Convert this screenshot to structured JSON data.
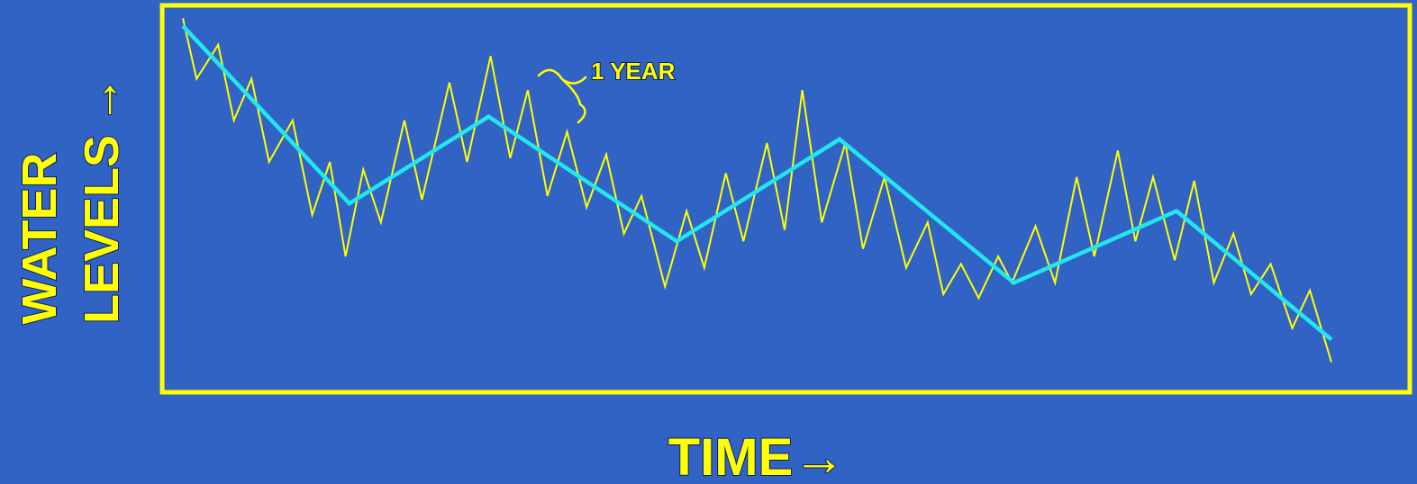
{
  "chart_data": {
    "type": "line",
    "xlabel": "TIME",
    "ylabel": [
      "WATER",
      "LEVELS"
    ],
    "arrow_glyph": "→",
    "annotation": "1 YEAR",
    "grid": false,
    "legend": "none",
    "xlim": [
      0,
      62
    ],
    "ylim": [
      0,
      100
    ],
    "colors": {
      "background": "#3163c5",
      "frame": "#ffff00",
      "seasonal": "#ffff00",
      "trend": "#22e6f0",
      "text": "#ffff00",
      "text_shadow": "#0b1f63"
    },
    "series": [
      {
        "values": [
          [
            0,
            98
          ],
          [
            0.7,
            82
          ],
          [
            1.8,
            91
          ],
          [
            2.6,
            71
          ],
          [
            3.5,
            82
          ],
          [
            4.4,
            60
          ],
          [
            5.6,
            71
          ],
          [
            6.6,
            46
          ],
          [
            7.5,
            60
          ],
          [
            8.3,
            35
          ],
          [
            9.2,
            58
          ],
          [
            10.1,
            44
          ],
          [
            11.3,
            71
          ],
          [
            12.2,
            50
          ],
          [
            13.6,
            81
          ],
          [
            14.5,
            60
          ],
          [
            15.7,
            88
          ],
          [
            16.7,
            61
          ],
          [
            17.6,
            79
          ],
          [
            18.6,
            51
          ],
          [
            19.6,
            68
          ],
          [
            20.6,
            48
          ],
          [
            21.6,
            62
          ],
          [
            22.5,
            41
          ],
          [
            23.4,
            51
          ],
          [
            24.6,
            27
          ],
          [
            25.7,
            47
          ],
          [
            26.6,
            32
          ],
          [
            27.7,
            57
          ],
          [
            28.6,
            39
          ],
          [
            29.8,
            65
          ],
          [
            30.7,
            42
          ],
          [
            31.6,
            79
          ],
          [
            32.6,
            44
          ],
          [
            33.8,
            65
          ],
          [
            34.7,
            37
          ],
          [
            35.8,
            56
          ],
          [
            36.9,
            32
          ],
          [
            38.0,
            44
          ],
          [
            38.8,
            25
          ],
          [
            39.7,
            33
          ],
          [
            40.6,
            24
          ],
          [
            41.6,
            35
          ],
          [
            42.3,
            28
          ],
          [
            43.5,
            43
          ],
          [
            44.5,
            28
          ],
          [
            45.6,
            56
          ],
          [
            46.5,
            35
          ],
          [
            47.7,
            63
          ],
          [
            48.6,
            39
          ],
          [
            49.5,
            56
          ],
          [
            50.6,
            34
          ],
          [
            51.6,
            55
          ],
          [
            52.6,
            28
          ],
          [
            53.6,
            41
          ],
          [
            54.5,
            25
          ],
          [
            55.5,
            33
          ],
          [
            56.6,
            16
          ],
          [
            57.5,
            26
          ],
          [
            58.6,
            7
          ]
        ]
      },
      {
        "values": [
          [
            0,
            96
          ],
          [
            8.5,
            49
          ],
          [
            15.6,
            72
          ],
          [
            25.2,
            39
          ],
          [
            33.5,
            66
          ],
          [
            42.4,
            28
          ],
          [
            50.7,
            47
          ],
          [
            58.6,
            13
          ]
        ]
      }
    ]
  }
}
